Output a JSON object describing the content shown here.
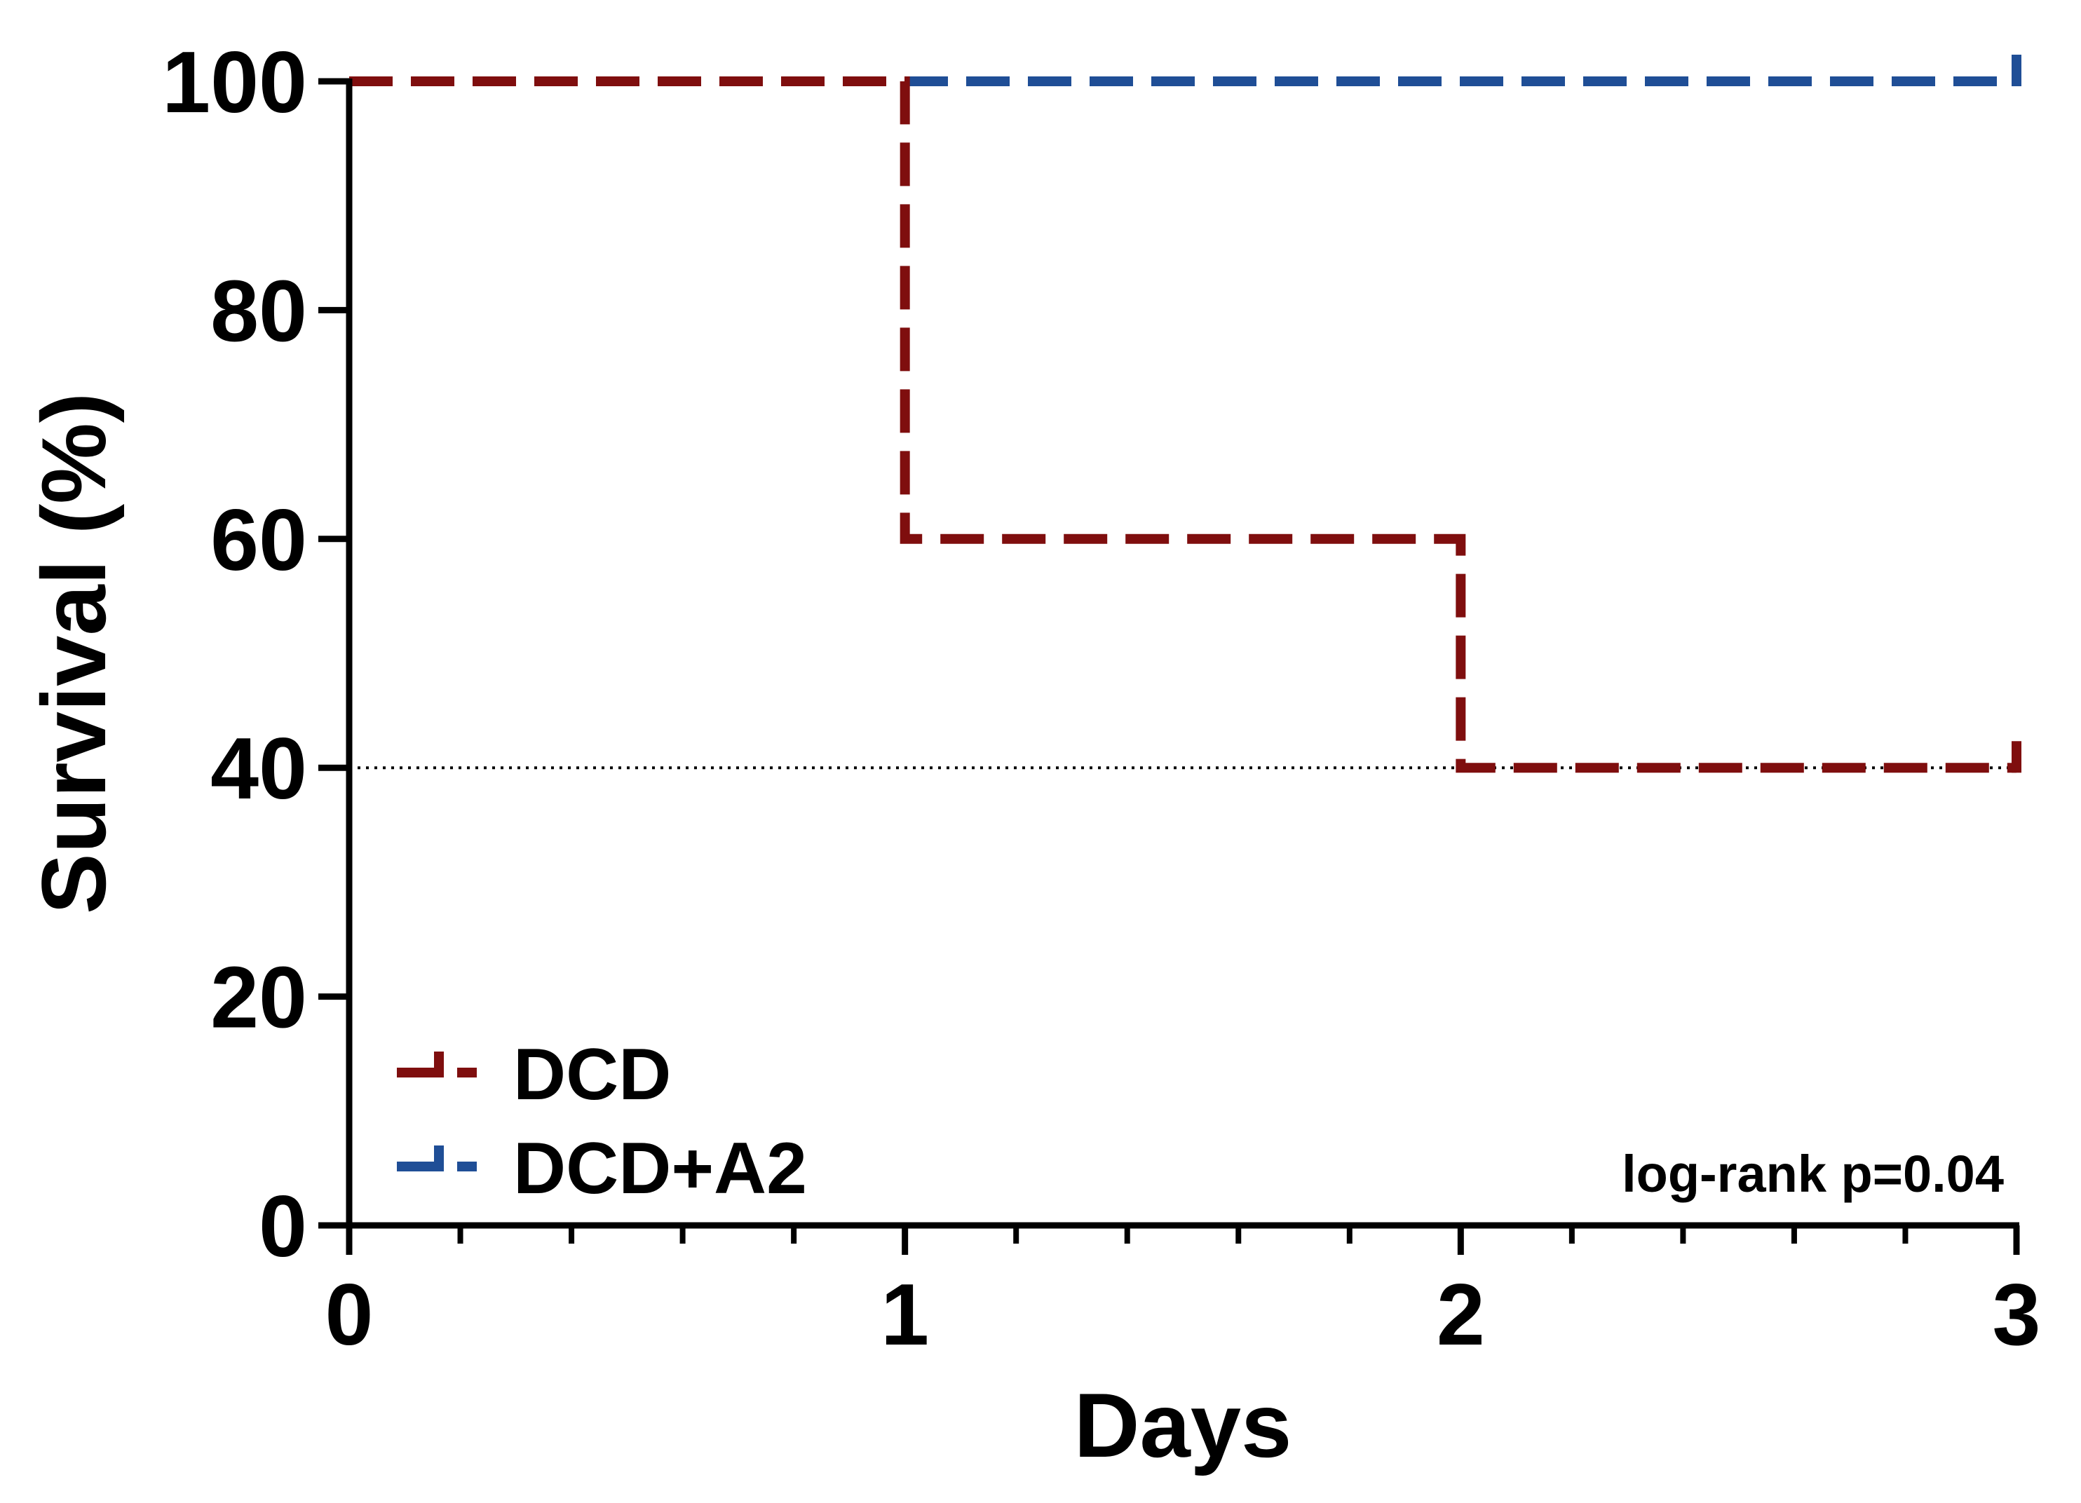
{
  "chart_data": {
    "type": "line",
    "subtype": "kaplan-meier step survival",
    "title": "",
    "xlabel": "Days",
    "ylabel": "Survival (%)",
    "xlim": [
      0,
      3
    ],
    "ylim": [
      0,
      100
    ],
    "x_ticks": [
      0,
      1,
      2,
      3
    ],
    "x_tick_labels": [
      "0",
      "1",
      "2",
      "3"
    ],
    "x_minor_tick_step": 0.2,
    "y_ticks": [
      0,
      20,
      40,
      60,
      80,
      100
    ],
    "y_tick_labels": [
      "0",
      "20",
      "40",
      "60",
      "80",
      "100"
    ],
    "grid": false,
    "legend_position": "bottom-left",
    "series": [
      {
        "name": "DCD",
        "color": "#7f0e0e",
        "line_style": "dashed",
        "steps": [
          {
            "x": 0,
            "y": 100
          },
          {
            "x": 1,
            "y": 100
          },
          {
            "x": 1,
            "y": 60
          },
          {
            "x": 2,
            "y": 60
          },
          {
            "x": 2,
            "y": 40
          },
          {
            "x": 3,
            "y": 40
          }
        ],
        "censor_marks": [
          {
            "x": 3,
            "y": 40
          }
        ]
      },
      {
        "name": "DCD+A2",
        "color": "#1f4e96",
        "line_style": "dashed",
        "steps": [
          {
            "x": 0,
            "y": 100
          },
          {
            "x": 3,
            "y": 100
          }
        ],
        "censor_marks": [
          {
            "x": 3,
            "y": 100
          }
        ]
      }
    ],
    "reference_line": {
      "y": 40,
      "style": "dotted",
      "color": "#000000"
    },
    "annotation": "log-rank p=0.04"
  }
}
